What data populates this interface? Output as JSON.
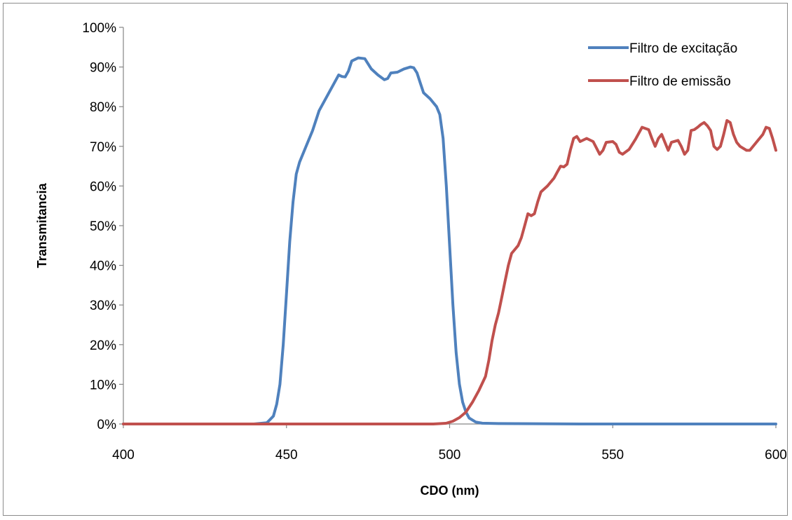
{
  "chart_data": {
    "type": "line",
    "title": "",
    "xlabel": "CDO (nm)",
    "ylabel": "Transmitancia",
    "xlim": [
      400,
      600
    ],
    "ylim": [
      0,
      1
    ],
    "x_ticks": [
      400,
      450,
      500,
      550,
      600
    ],
    "x_tick_labels": [
      "400",
      "450",
      "500",
      "550",
      "600"
    ],
    "y_ticks": [
      0,
      0.1,
      0.2,
      0.3,
      0.4,
      0.5,
      0.6,
      0.7,
      0.8,
      0.9,
      1.0
    ],
    "y_tick_labels": [
      "0%",
      "10%",
      "20%",
      "30%",
      "40%",
      "50%",
      "60%",
      "70%",
      "80%",
      "90%",
      "100%"
    ],
    "grid": false,
    "legend_position": "top-right",
    "series": [
      {
        "name": "Filtro de excitação",
        "color": "#4f81bd",
        "points": [
          [
            400,
            0
          ],
          [
            440,
            0
          ],
          [
            444,
            0.003
          ],
          [
            446,
            0.02
          ],
          [
            447,
            0.05
          ],
          [
            448,
            0.1
          ],
          [
            449,
            0.2
          ],
          [
            450,
            0.33
          ],
          [
            451,
            0.46
          ],
          [
            452,
            0.56
          ],
          [
            453,
            0.63
          ],
          [
            454,
            0.66
          ],
          [
            456,
            0.7
          ],
          [
            458,
            0.74
          ],
          [
            460,
            0.79
          ],
          [
            462,
            0.82
          ],
          [
            464,
            0.85
          ],
          [
            466,
            0.88
          ],
          [
            467,
            0.876
          ],
          [
            468,
            0.875
          ],
          [
            469,
            0.89
          ],
          [
            470,
            0.915
          ],
          [
            472,
            0.923
          ],
          [
            474,
            0.921
          ],
          [
            476,
            0.895
          ],
          [
            478,
            0.88
          ],
          [
            480,
            0.868
          ],
          [
            481,
            0.871
          ],
          [
            482,
            0.885
          ],
          [
            484,
            0.887
          ],
          [
            486,
            0.895
          ],
          [
            488,
            0.9
          ],
          [
            489,
            0.898
          ],
          [
            490,
            0.885
          ],
          [
            491,
            0.86
          ],
          [
            492,
            0.835
          ],
          [
            494,
            0.82
          ],
          [
            495,
            0.81
          ],
          [
            496,
            0.8
          ],
          [
            497,
            0.78
          ],
          [
            498,
            0.72
          ],
          [
            499,
            0.6
          ],
          [
            500,
            0.45
          ],
          [
            501,
            0.3
          ],
          [
            502,
            0.18
          ],
          [
            503,
            0.1
          ],
          [
            504,
            0.055
          ],
          [
            505,
            0.03
          ],
          [
            506,
            0.015
          ],
          [
            508,
            0.005
          ],
          [
            510,
            0.002
          ],
          [
            515,
            0.001
          ],
          [
            540,
            0
          ],
          [
            600,
            0
          ]
        ]
      },
      {
        "name": "Filtro de emissão",
        "color": "#c0504d",
        "points": [
          [
            400,
            0
          ],
          [
            495,
            0
          ],
          [
            499,
            0.002
          ],
          [
            501,
            0.007
          ],
          [
            503,
            0.016
          ],
          [
            505,
            0.03
          ],
          [
            507,
            0.055
          ],
          [
            509,
            0.085
          ],
          [
            511,
            0.12
          ],
          [
            512,
            0.16
          ],
          [
            513,
            0.21
          ],
          [
            514,
            0.25
          ],
          [
            515,
            0.28
          ],
          [
            516,
            0.32
          ],
          [
            517,
            0.36
          ],
          [
            518,
            0.4
          ],
          [
            519,
            0.43
          ],
          [
            520,
            0.44
          ],
          [
            521,
            0.45
          ],
          [
            522,
            0.47
          ],
          [
            523,
            0.5
          ],
          [
            524,
            0.53
          ],
          [
            525,
            0.525
          ],
          [
            526,
            0.53
          ],
          [
            527,
            0.56
          ],
          [
            528,
            0.585
          ],
          [
            530,
            0.6
          ],
          [
            532,
            0.62
          ],
          [
            533,
            0.635
          ],
          [
            534,
            0.65
          ],
          [
            535,
            0.648
          ],
          [
            536,
            0.655
          ],
          [
            537,
            0.69
          ],
          [
            538,
            0.72
          ],
          [
            539,
            0.725
          ],
          [
            540,
            0.712
          ],
          [
            542,
            0.72
          ],
          [
            544,
            0.712
          ],
          [
            546,
            0.68
          ],
          [
            547,
            0.69
          ],
          [
            548,
            0.71
          ],
          [
            550,
            0.712
          ],
          [
            551,
            0.705
          ],
          [
            552,
            0.685
          ],
          [
            553,
            0.68
          ],
          [
            555,
            0.692
          ],
          [
            557,
            0.718
          ],
          [
            559,
            0.748
          ],
          [
            561,
            0.742
          ],
          [
            562,
            0.72
          ],
          [
            563,
            0.7
          ],
          [
            564,
            0.72
          ],
          [
            565,
            0.73
          ],
          [
            566,
            0.71
          ],
          [
            567,
            0.69
          ],
          [
            568,
            0.71
          ],
          [
            570,
            0.715
          ],
          [
            571,
            0.7
          ],
          [
            572,
            0.68
          ],
          [
            573,
            0.69
          ],
          [
            574,
            0.74
          ],
          [
            575,
            0.742
          ],
          [
            576,
            0.748
          ],
          [
            577,
            0.755
          ],
          [
            578,
            0.76
          ],
          [
            579,
            0.752
          ],
          [
            580,
            0.74
          ],
          [
            581,
            0.7
          ],
          [
            582,
            0.692
          ],
          [
            583,
            0.7
          ],
          [
            584,
            0.73
          ],
          [
            585,
            0.765
          ],
          [
            586,
            0.76
          ],
          [
            587,
            0.73
          ],
          [
            588,
            0.71
          ],
          [
            589,
            0.7
          ],
          [
            591,
            0.69
          ],
          [
            592,
            0.69
          ],
          [
            594,
            0.71
          ],
          [
            596,
            0.73
          ],
          [
            597,
            0.748
          ],
          [
            598,
            0.745
          ],
          [
            599,
            0.72
          ],
          [
            600,
            0.69
          ]
        ]
      }
    ]
  }
}
